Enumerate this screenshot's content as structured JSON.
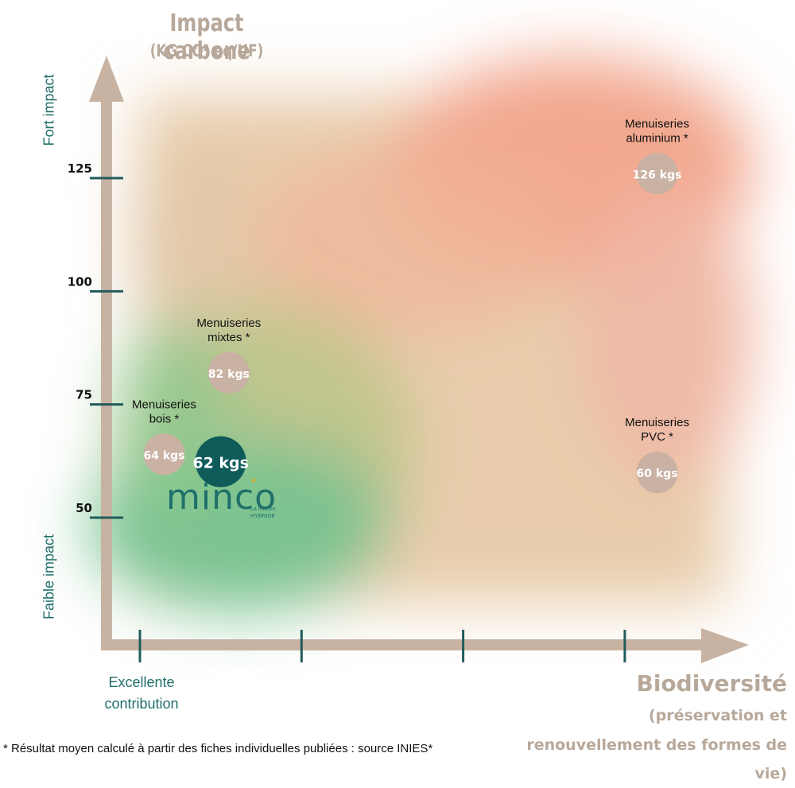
{
  "chart_data": {
    "type": "scatter",
    "title": "Impact carbone",
    "subtitle": "(KG CO² eq/UF)",
    "ylabel_high": "Fort impact",
    "ylabel_low": "Faible impact",
    "yticks": [
      125,
      100,
      75,
      50
    ],
    "xlabel_main": "Biodiversité",
    "xlabel_detail_1": "(préservation et",
    "xlabel_detail_2": "renouvellement des formes de vie)",
    "xtick_label_line1": "Excellente",
    "xtick_label_line2": "contribution",
    "points": [
      {
        "name_line1": "Menuiseries",
        "name_line2": "aluminium *",
        "y": 126,
        "x": 3.2,
        "value_label": "126 kgs"
      },
      {
        "name_line1": "Menuiseries",
        "name_line2": "mixtes *",
        "y": 82,
        "x": 0.55,
        "value_label": "82 kgs"
      },
      {
        "name_line1": "Menuiseries",
        "name_line2": "bois *",
        "y": 64,
        "x": 0.15,
        "value_label": "64 kgs"
      },
      {
        "name_line1": "Menuiseries",
        "name_line2": "PVC *",
        "y": 60,
        "x": 3.2,
        "value_label": "60 kgs"
      }
    ],
    "highlight": {
      "y": 62,
      "x": 0.5,
      "value_label": "62 kgs",
      "brand": "minco",
      "tagline_1": "La fenêtre",
      "tagline_2": "HYBRIDE"
    },
    "colors": {
      "axis": "#c8b3a3",
      "tick": "#1f5c5a",
      "bubble": "#c9b1a3",
      "highlight": "#0f5b5a",
      "brand": "#1f6f6a"
    }
  },
  "footnote": "* Résultat moyen calculé à partir des fiches individuelles publiées : source INIES*"
}
